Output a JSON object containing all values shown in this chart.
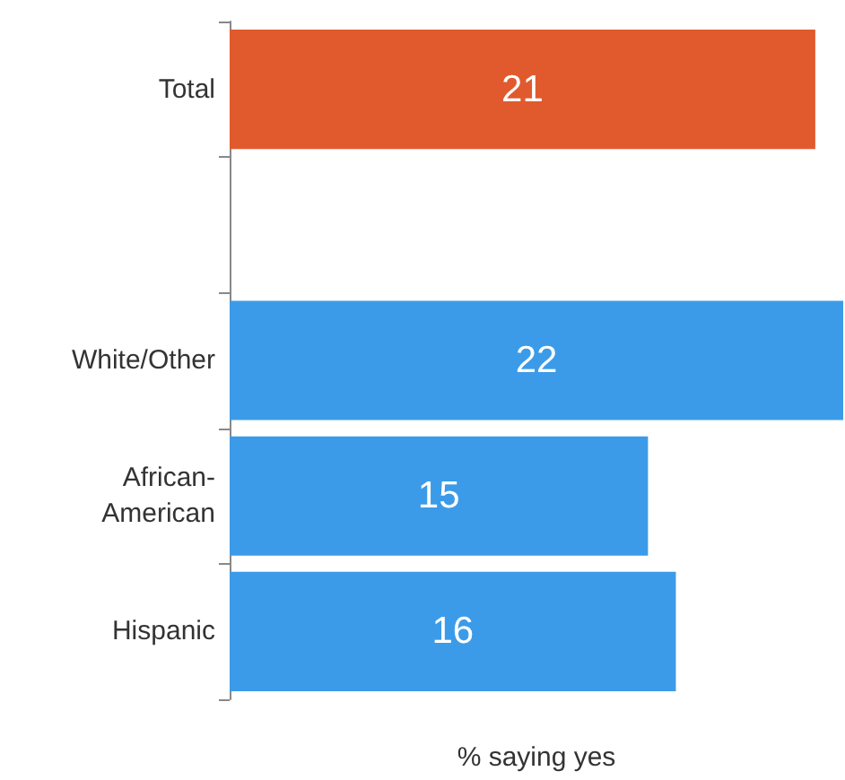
{
  "chart_data": {
    "type": "bar",
    "orientation": "horizontal",
    "categories": [
      "Total",
      null,
      "White/Other",
      "African-American",
      "Hispanic"
    ],
    "values": [
      21,
      null,
      22,
      15,
      16
    ],
    "colors": [
      "#e05a2e",
      "#3c9be8",
      "#3c9be8",
      "#3c9be8",
      "#3c9be8"
    ],
    "data_labels": true,
    "xlabel": "% saying yes"
  }
}
